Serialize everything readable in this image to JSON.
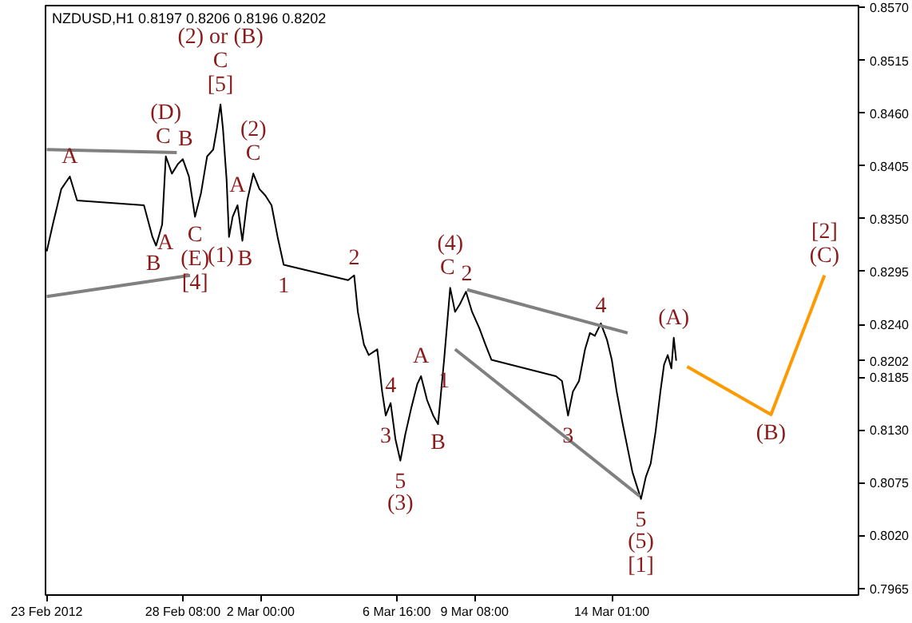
{
  "chart_data": {
    "type": "line",
    "title": "NZDUSD,H1  0.8197 0.8206 0.8196 0.8202",
    "xlim": [
      "2012-02-23T15:00",
      "2012-03-22T12:00"
    ],
    "xticks": [
      {
        "value": "2012-02-23T16:00",
        "label": "23 Feb 2012"
      },
      {
        "value": "2012-02-28T08:00",
        "label": "28 Feb 08:00"
      },
      {
        "value": "2012-03-02T00:00",
        "label": "2 Mar 00:00"
      },
      {
        "value": "2012-03-06T16:00",
        "label": "6 Mar 16:00"
      },
      {
        "value": "2012-03-09T08:00",
        "label": "9 Mar 08:00"
      },
      {
        "value": "2012-03-14T01:00",
        "label": "14 Mar 01:00"
      }
    ],
    "ylim": [
      0.7958,
      0.8572
    ],
    "yticks": [
      {
        "value": 0.857,
        "label": "0.8570"
      },
      0.8515,
      {
        "value": 0.846,
        "label": "0.8460"
      },
      0.8405,
      {
        "value": 0.835,
        "label": "0.8350"
      },
      0.8295,
      {
        "value": 0.824,
        "label": "0.8240"
      },
      0.8202,
      0.8185,
      {
        "value": 0.813,
        "label": "0.8130"
      },
      0.8075,
      {
        "value": 0.802,
        "label": "0.8020"
      },
      0.7965
    ],
    "grid": false,
    "series": [
      {
        "color": "#000000",
        "x": [
          "2012-02-23T16:00",
          "2012-02-23T21:00",
          "2012-02-24T04:00",
          "2012-02-24T11:00",
          "2012-02-24T17:00",
          "2012-02-27T00:00",
          "2012-02-27T07:00",
          "2012-02-27T10:00",
          "2012-02-27T15:00",
          "2012-02-27T18:00",
          "2012-02-27T23:00",
          "2012-02-28T04:00",
          "2012-02-28T08:00",
          "2012-02-28T13:00",
          "2012-02-28T18:00",
          "2012-02-28T23:00",
          "2012-02-29T04:00",
          "2012-02-29T09:00",
          "2012-02-29T12:00",
          "2012-02-29T15:00",
          "2012-02-29T17:00",
          "2012-02-29T20:00",
          "2012-02-29T22:00",
          "2012-03-01T01:00",
          "2012-03-01T05:00",
          "2012-03-01T09:00",
          "2012-03-01T13:00",
          "2012-03-01T18:00",
          "2012-03-01T23:00",
          "2012-03-02T04:00",
          "2012-03-02T09:00",
          "2012-03-02T14:00",
          "2012-03-02T19:00",
          "2012-03-05T00:00",
          "2012-03-05T05:00",
          "2012-03-05T08:00",
          "2012-03-05T13:00",
          "2012-03-05T17:00",
          "2012-03-06T00:00",
          "2012-03-06T04:00",
          "2012-03-06T07:00",
          "2012-03-06T11:00",
          "2012-03-06T15:00",
          "2012-03-06T19:00",
          "2012-03-06T23:00",
          "2012-03-07T04:00",
          "2012-03-07T09:00",
          "2012-03-07T12:00",
          "2012-03-07T17:00",
          "2012-03-07T22:00",
          "2012-03-08T02:00",
          "2012-03-08T07:00",
          "2012-03-08T12:00",
          "2012-03-08T16:00",
          "2012-03-08T20:00",
          "2012-03-09T01:00",
          "2012-03-09T06:00",
          "2012-03-09T12:00",
          "2012-03-09T17:00",
          "2012-03-09T22:00",
          "2012-03-12T03:00",
          "2012-03-12T08:00",
          "2012-03-12T13:00",
          "2012-03-12T17:00",
          "2012-03-12T22:00",
          "2012-03-13T03:00",
          "2012-03-13T07:00",
          "2012-03-13T11:00",
          "2012-03-13T16:00",
          "2012-03-13T21:00",
          "2012-03-14T01:00",
          "2012-03-14T05:00",
          "2012-03-14T10:00",
          "2012-03-14T14:00",
          "2012-03-14T18:00",
          "2012-03-14T22:00",
          "2012-03-15T01:00",
          "2012-03-15T05:00",
          "2012-03-15T09:00",
          "2012-03-15T13:00",
          "2012-03-15T17:00",
          "2012-03-15T20:00",
          "2012-03-15T23:00",
          "2012-03-16T02:00",
          "2012-03-16T04:00",
          "2012-03-16T06:00"
        ],
        "values": [
          0.8316,
          0.8344,
          0.8381,
          0.8394,
          0.8369,
          0.8364,
          0.8331,
          0.8322,
          0.8344,
          0.8415,
          0.8397,
          0.8407,
          0.8412,
          0.8394,
          0.8352,
          0.8377,
          0.8415,
          0.8422,
          0.8444,
          0.8469,
          0.8444,
          0.8391,
          0.8331,
          0.8352,
          0.8364,
          0.8327,
          0.8369,
          0.8397,
          0.8381,
          0.8374,
          0.8364,
          0.8331,
          0.8302,
          0.8286,
          0.8291,
          0.8253,
          0.8219,
          0.8208,
          0.8214,
          0.817,
          0.8145,
          0.8158,
          0.812,
          0.8098,
          0.8125,
          0.8153,
          0.8178,
          0.8186,
          0.8161,
          0.8145,
          0.8136,
          0.8203,
          0.8278,
          0.8253,
          0.8261,
          0.8274,
          0.8253,
          0.8236,
          0.8219,
          0.8203,
          0.8186,
          0.8181,
          0.8145,
          0.817,
          0.8181,
          0.8214,
          0.8231,
          0.8228,
          0.8241,
          0.8224,
          0.8203,
          0.817,
          0.8136,
          0.8111,
          0.8086,
          0.807,
          0.8058,
          0.8081,
          0.8095,
          0.8128,
          0.817,
          0.8198,
          0.8208,
          0.8194,
          0.8226,
          0.8202
        ]
      },
      {
        "color": "#808080",
        "x": [
          "2012-02-23T16:00",
          "2012-02-28T03:00"
        ],
        "values": [
          0.8422,
          0.8419
        ]
      },
      {
        "color": "#808080",
        "x": [
          "2012-02-23T16:00",
          "2012-02-28T14:00"
        ],
        "values": [
          0.8269,
          0.8291
        ]
      },
      {
        "color": "#808080",
        "x": [
          "2012-03-09T02:00",
          "2012-03-14T14:00"
        ],
        "values": [
          0.8276,
          0.8231
        ]
      },
      {
        "color": "#808080",
        "x": [
          "2012-03-08T16:00",
          "2012-03-15T00:00"
        ],
        "values": [
          0.8214,
          0.8061
        ]
      },
      {
        "color": "#ff9900",
        "x": [
          "2012-03-16T15:00",
          "2012-03-19T12:00",
          "2012-03-21T08:00"
        ],
        "values": [
          0.8196,
          0.8146,
          0.8291
        ]
      }
    ],
    "annotations": [
      {
        "text": "(2) or (B)",
        "x": "2012-02-29T15:00",
        "y": 0.8469
      },
      {
        "text": "C",
        "x": "2012-02-29T15:00",
        "y": 0.8469
      },
      {
        "text": "[5]",
        "x": "2012-02-29T15:00",
        "y": 0.8469
      },
      {
        "text": "(D)",
        "x": "2012-02-27T18:00",
        "y": 0.8415
      },
      {
        "text": "C",
        "x": "2012-02-27T18:00",
        "y": 0.8415
      },
      {
        "text": "B",
        "x": "2012-02-28T08:00",
        "y": 0.8412
      },
      {
        "text": "A",
        "x": "2012-02-24T11:00",
        "y": 0.8394
      },
      {
        "text": "A",
        "x": "2012-02-27T15:00",
        "y": 0.8344
      },
      {
        "text": "B",
        "x": "2012-02-27T10:00",
        "y": 0.8322
      },
      {
        "text": "C",
        "x": "2012-02-28T18:00",
        "y": 0.8352
      },
      {
        "text": "(E)",
        "x": "2012-02-28T18:00",
        "y": 0.8352
      },
      {
        "text": "[4]",
        "x": "2012-02-28T18:00",
        "y": 0.8352
      },
      {
        "text": "(1)",
        "x": "2012-02-29T22:00",
        "y": 0.8331
      },
      {
        "text": "B",
        "x": "2012-03-01T09:00",
        "y": 0.8327
      },
      {
        "text": "A",
        "x": "2012-03-01T05:00",
        "y": 0.8364
      },
      {
        "text": "(2)",
        "x": "2012-03-01T18:00",
        "y": 0.8397
      },
      {
        "text": "C",
        "x": "2012-03-01T18:00",
        "y": 0.8397
      },
      {
        "text": "2",
        "x": "2012-03-05T05:00",
        "y": 0.8291
      },
      {
        "text": "1",
        "x": "2012-03-02T19:00",
        "y": 0.8302
      },
      {
        "text": "4",
        "x": "2012-03-06T11:00",
        "y": 0.8158
      },
      {
        "text": "A",
        "x": "2012-03-07T12:00",
        "y": 0.8186
      },
      {
        "text": "3",
        "x": "2012-03-06T07:00",
        "y": 0.8145
      },
      {
        "text": "5",
        "x": "2012-03-06T19:00",
        "y": 0.8098
      },
      {
        "text": "(3)",
        "x": "2012-03-06T19:00",
        "y": 0.8098
      },
      {
        "text": "B",
        "x": "2012-03-08T02:00",
        "y": 0.8136
      },
      {
        "text": "1",
        "x": "2012-03-08T07:00",
        "y": 0.8203
      },
      {
        "text": "(4)",
        "x": "2012-03-08T12:00",
        "y": 0.8278
      },
      {
        "text": "C",
        "x": "2012-03-08T12:00",
        "y": 0.8278
      },
      {
        "text": "2",
        "x": "2012-03-09T01:00",
        "y": 0.8274
      },
      {
        "text": "3",
        "x": "2012-03-12T13:00",
        "y": 0.8145
      },
      {
        "text": "4",
        "x": "2012-03-13T16:00",
        "y": 0.8241
      },
      {
        "text": "(A)",
        "x": "2012-03-16T04:00",
        "y": 0.8226
      },
      {
        "text": "(B)",
        "x": "2012-03-19T12:00",
        "y": 0.8146
      },
      {
        "text": "5",
        "x": "2012-03-15T01:00",
        "y": 0.8058
      },
      {
        "text": "(5)",
        "x": "2012-03-15T01:00",
        "y": 0.8058
      },
      {
        "text": "[1]",
        "x": "2012-03-15T01:00",
        "y": 0.8058
      },
      {
        "text": "[2]",
        "x": "2012-03-21T08:00",
        "y": 0.8291
      },
      {
        "text": "(C)",
        "x": "2012-03-21T08:00",
        "y": 0.8291
      }
    ]
  }
}
